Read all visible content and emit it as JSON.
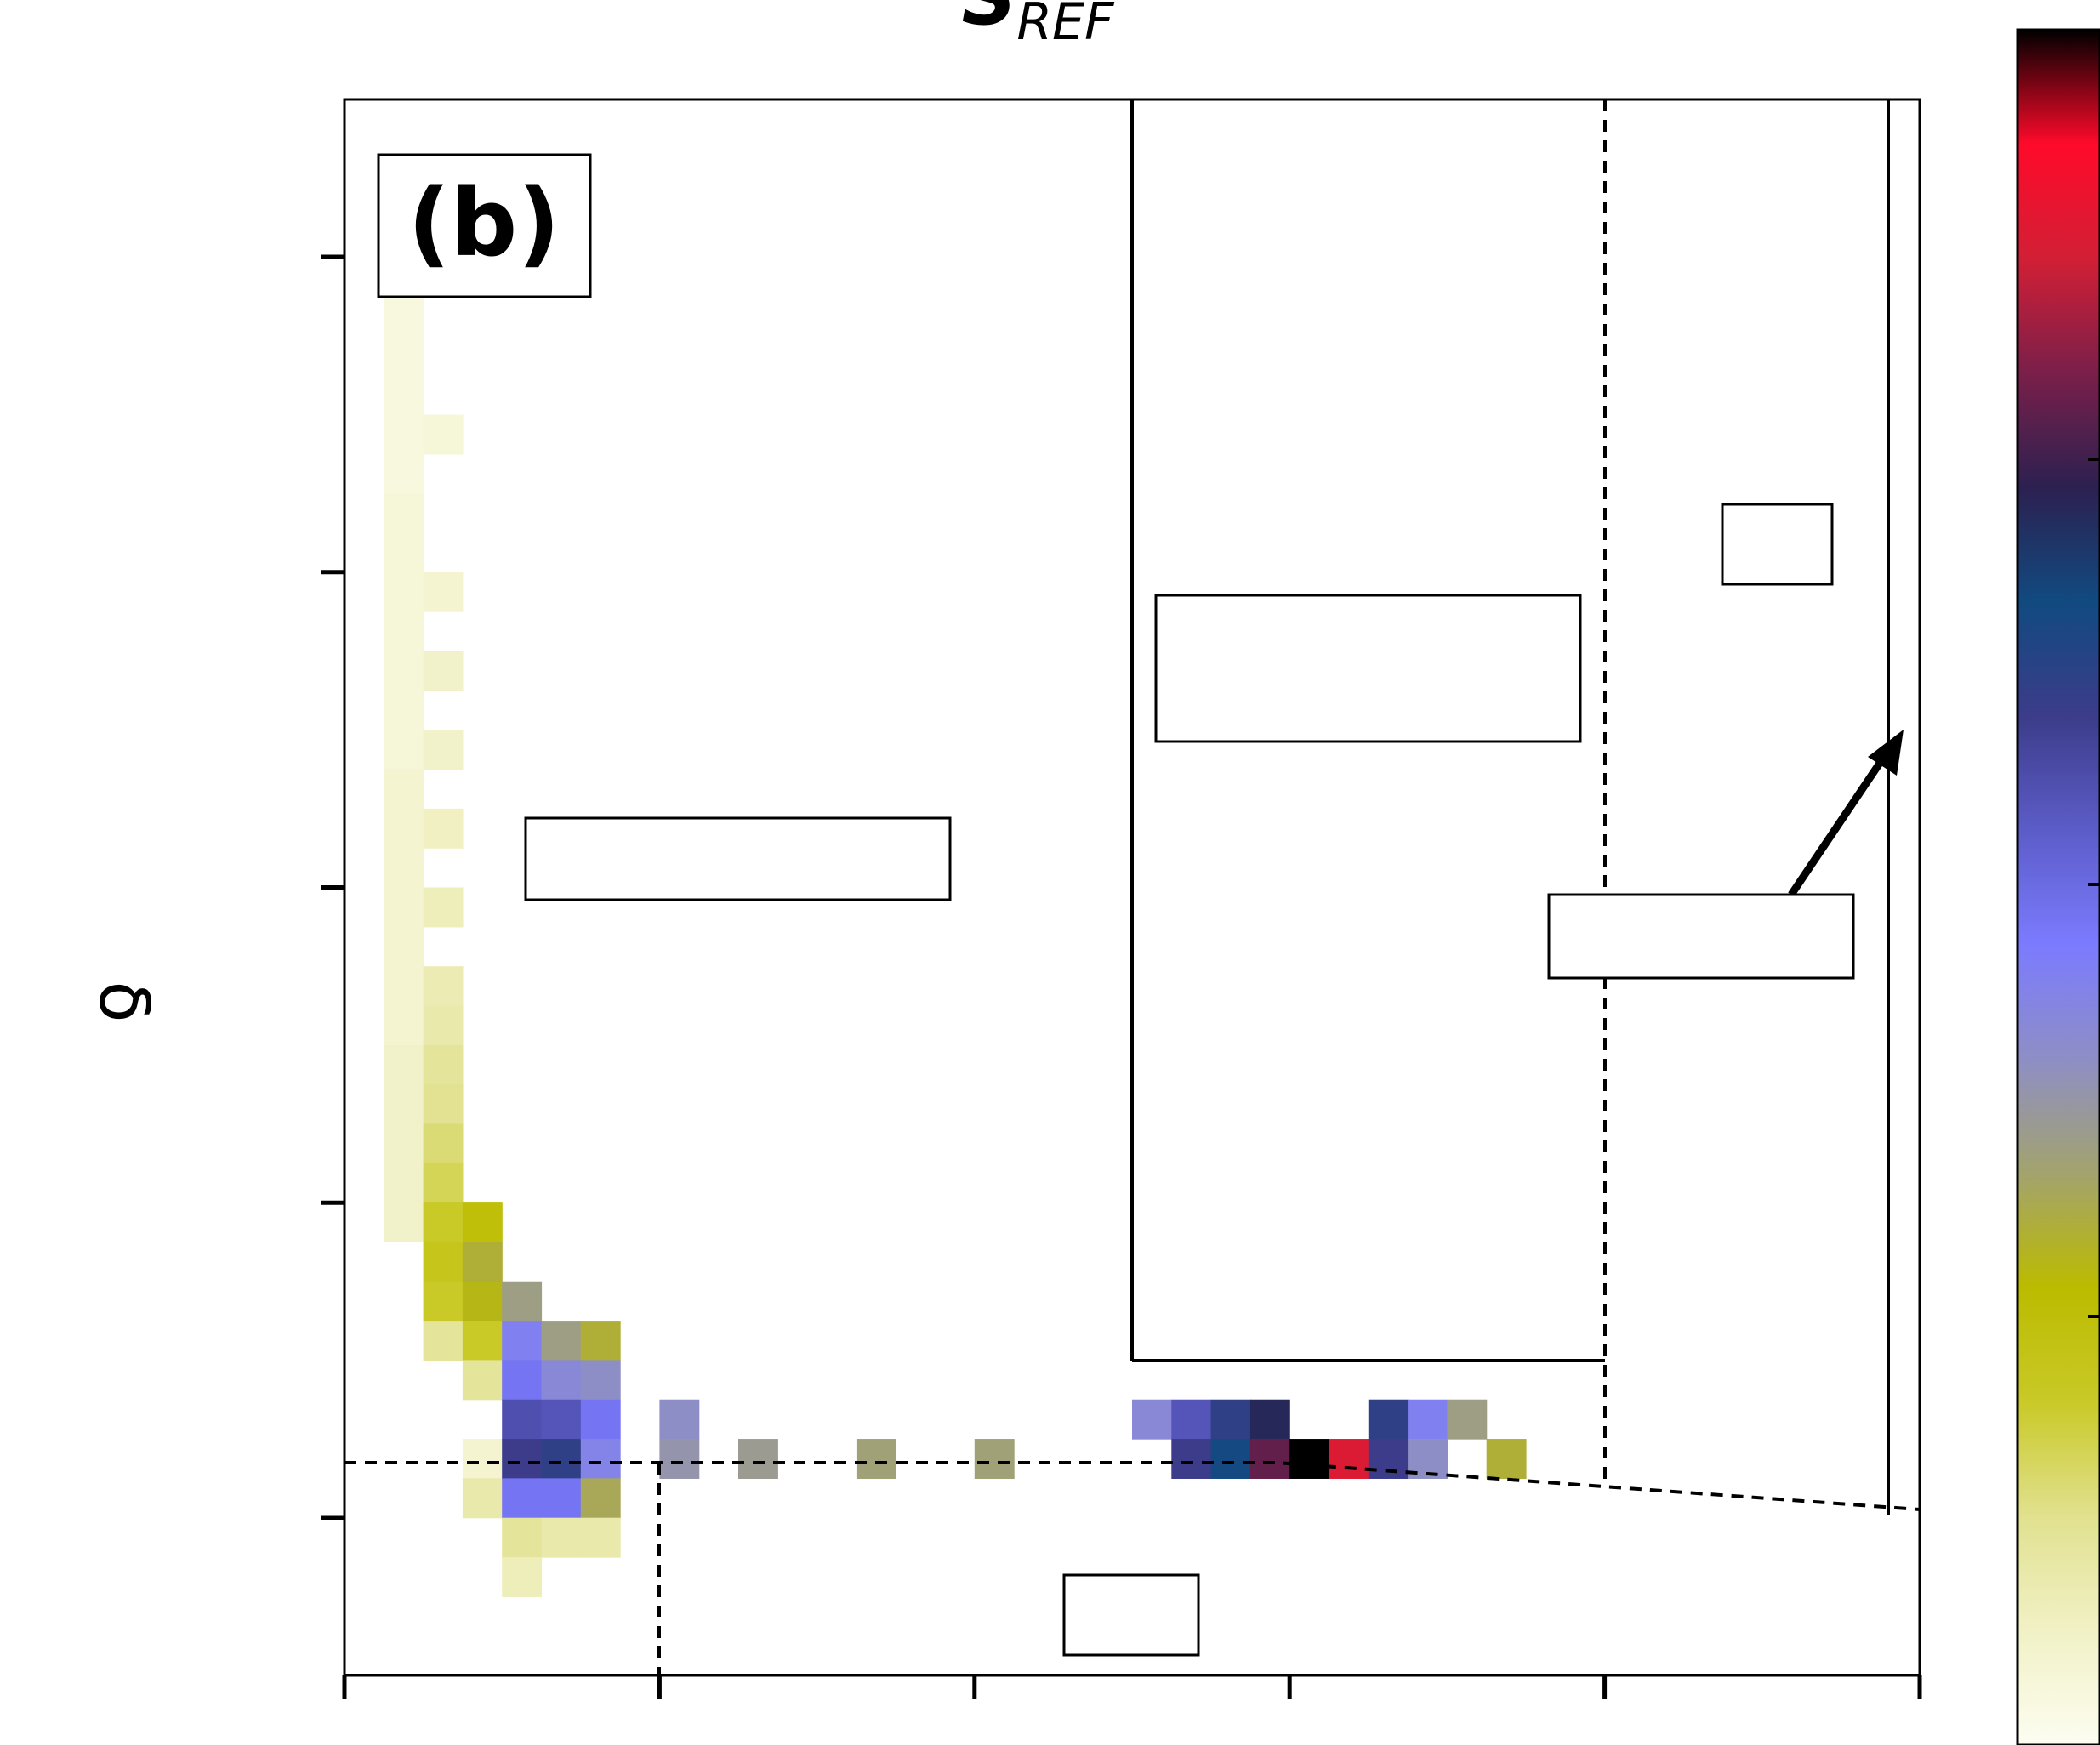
{
  "panel_label": "(b)",
  "title": {
    "main": "S",
    "subscript": "REF"
  },
  "ylabel": "δ",
  "chart_data": {
    "type": "heatmap",
    "title": "S_REF",
    "ylabel": "δ",
    "xlabel": "",
    "grid": false,
    "x_tick_count": 6,
    "y_tick_count": 5,
    "colormap": [
      "#fdfdf2",
      "#f1f1c6",
      "#e1e18f",
      "#c9c928",
      "#bbbb00",
      "#a3a36e",
      "#8e8ec6",
      "#7b7bff",
      "#5c5cc8",
      "#3c3c8a",
      "#114a80",
      "#2c2050",
      "#7a1f4a",
      "#d21f35",
      "#ff0a2a",
      "#000000"
    ],
    "grid_size": {
      "cols": 40,
      "rows": 40
    },
    "cells": [
      {
        "c": 1,
        "r": 5,
        "v": 0.03
      },
      {
        "c": 1,
        "r": 6,
        "v": 0.03
      },
      {
        "c": 1,
        "r": 7,
        "v": 0.03
      },
      {
        "c": 1,
        "r": 8,
        "v": 0.03
      },
      {
        "c": 1,
        "r": 9,
        "v": 0.03
      },
      {
        "c": 1,
        "r": 10,
        "v": 0.04
      },
      {
        "c": 1,
        "r": 11,
        "v": 0.04
      },
      {
        "c": 1,
        "r": 12,
        "v": 0.04
      },
      {
        "c": 1,
        "r": 13,
        "v": 0.04
      },
      {
        "c": 1,
        "r": 14,
        "v": 0.04
      },
      {
        "c": 1,
        "r": 15,
        "v": 0.04
      },
      {
        "c": 1,
        "r": 16,
        "v": 0.04
      },
      {
        "c": 1,
        "r": 17,
        "v": 0.05
      },
      {
        "c": 1,
        "r": 18,
        "v": 0.05
      },
      {
        "c": 1,
        "r": 19,
        "v": 0.05
      },
      {
        "c": 1,
        "r": 20,
        "v": 0.05
      },
      {
        "c": 1,
        "r": 21,
        "v": 0.05
      },
      {
        "c": 1,
        "r": 22,
        "v": 0.05
      },
      {
        "c": 1,
        "r": 23,
        "v": 0.05
      },
      {
        "c": 1,
        "r": 24,
        "v": 0.06
      },
      {
        "c": 1,
        "r": 25,
        "v": 0.06
      },
      {
        "c": 1,
        "r": 26,
        "v": 0.06
      },
      {
        "c": 1,
        "r": 27,
        "v": 0.06
      },
      {
        "c": 1,
        "r": 28,
        "v": 0.06
      },
      {
        "c": 2,
        "r": 8,
        "v": 0.04
      },
      {
        "c": 2,
        "r": 12,
        "v": 0.05
      },
      {
        "c": 2,
        "r": 14,
        "v": 0.06
      },
      {
        "c": 2,
        "r": 16,
        "v": 0.06
      },
      {
        "c": 2,
        "r": 18,
        "v": 0.07
      },
      {
        "c": 2,
        "r": 20,
        "v": 0.08
      },
      {
        "c": 2,
        "r": 22,
        "v": 0.09
      },
      {
        "c": 2,
        "r": 23,
        "v": 0.1
      },
      {
        "c": 2,
        "r": 24,
        "v": 0.12
      },
      {
        "c": 2,
        "r": 25,
        "v": 0.13
      },
      {
        "c": 2,
        "r": 26,
        "v": 0.15
      },
      {
        "c": 2,
        "r": 27,
        "v": 0.17
      },
      {
        "c": 2,
        "r": 28,
        "v": 0.2
      },
      {
        "c": 2,
        "r": 29,
        "v": 0.22
      },
      {
        "c": 2,
        "r": 30,
        "v": 0.2
      },
      {
        "c": 2,
        "r": 31,
        "v": 0.12
      },
      {
        "c": 3,
        "r": 28,
        "v": 0.25
      },
      {
        "c": 3,
        "r": 29,
        "v": 0.3
      },
      {
        "c": 3,
        "r": 30,
        "v": 0.28
      },
      {
        "c": 3,
        "r": 31,
        "v": 0.2
      },
      {
        "c": 3,
        "r": 32,
        "v": 0.12
      },
      {
        "c": 3,
        "r": 34,
        "v": 0.05
      },
      {
        "c": 3,
        "r": 35,
        "v": 0.1
      },
      {
        "c": 4,
        "r": 30,
        "v": 0.35
      },
      {
        "c": 4,
        "r": 31,
        "v": 0.45
      },
      {
        "c": 4,
        "r": 32,
        "v": 0.48
      },
      {
        "c": 4,
        "r": 33,
        "v": 0.56
      },
      {
        "c": 4,
        "r": 34,
        "v": 0.6
      },
      {
        "c": 4,
        "r": 35,
        "v": 0.48
      },
      {
        "c": 4,
        "r": 36,
        "v": 0.12
      },
      {
        "c": 4,
        "r": 37,
        "v": 0.08
      },
      {
        "c": 5,
        "r": 31,
        "v": 0.35
      },
      {
        "c": 5,
        "r": 32,
        "v": 0.42
      },
      {
        "c": 5,
        "r": 33,
        "v": 0.55
      },
      {
        "c": 5,
        "r": 34,
        "v": 0.62
      },
      {
        "c": 5,
        "r": 35,
        "v": 0.48
      },
      {
        "c": 5,
        "r": 36,
        "v": 0.1
      },
      {
        "c": 6,
        "r": 31,
        "v": 0.3
      },
      {
        "c": 6,
        "r": 32,
        "v": 0.4
      },
      {
        "c": 6,
        "r": 33,
        "v": 0.48
      },
      {
        "c": 6,
        "r": 34,
        "v": 0.44
      },
      {
        "c": 6,
        "r": 35,
        "v": 0.32
      },
      {
        "c": 6,
        "r": 36,
        "v": 0.1
      },
      {
        "c": 8,
        "r": 33,
        "v": 0.4
      },
      {
        "c": 8,
        "r": 34,
        "v": 0.38
      },
      {
        "c": 10,
        "r": 34,
        "v": 0.36
      },
      {
        "c": 13,
        "r": 34,
        "v": 0.34
      },
      {
        "c": 16,
        "r": 34,
        "v": 0.34
      },
      {
        "c": 20,
        "r": 33,
        "v": 0.42
      },
      {
        "c": 21,
        "r": 33,
        "v": 0.55
      },
      {
        "c": 21,
        "r": 34,
        "v": 0.6
      },
      {
        "c": 22,
        "r": 33,
        "v": 0.62
      },
      {
        "c": 22,
        "r": 34,
        "v": 0.66
      },
      {
        "c": 23,
        "r": 33,
        "v": 0.72
      },
      {
        "c": 23,
        "r": 34,
        "v": 0.78
      },
      {
        "c": 24,
        "r": 34,
        "v": 1.0
      },
      {
        "c": 25,
        "r": 34,
        "v": 0.88
      },
      {
        "c": 26,
        "r": 33,
        "v": 0.62
      },
      {
        "c": 26,
        "r": 34,
        "v": 0.6
      },
      {
        "c": 27,
        "r": 33,
        "v": 0.45
      },
      {
        "c": 27,
        "r": 34,
        "v": 0.4
      },
      {
        "c": 28,
        "r": 33,
        "v": 0.35
      },
      {
        "c": 29,
        "r": 34,
        "v": 0.3
      }
    ],
    "colorbar": {
      "min": 0,
      "max": 1
    }
  },
  "boxes": {
    "left_label": "",
    "center_label": "",
    "right_small_label": "",
    "right_wide_label": "",
    "bottom_label": ""
  }
}
